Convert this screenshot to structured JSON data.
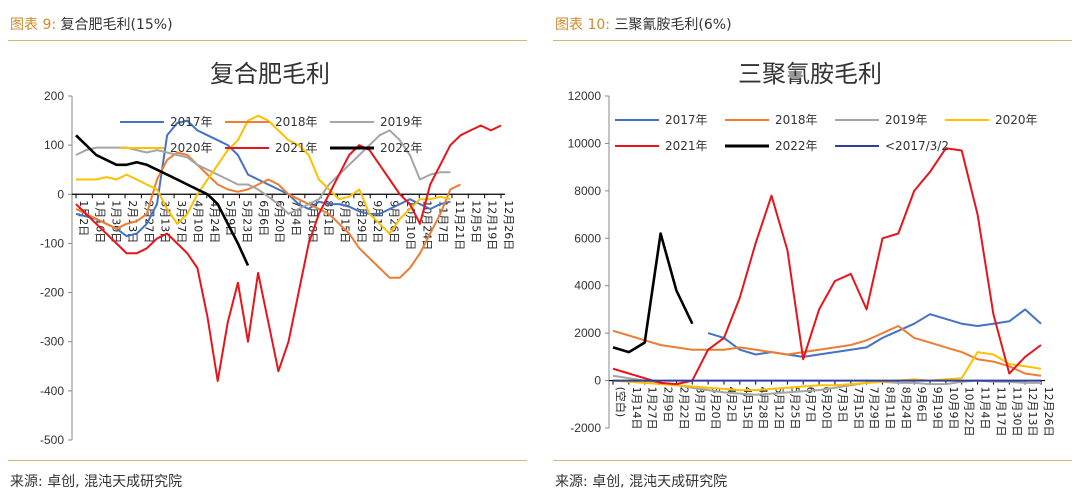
{
  "figures": [
    {
      "caption_prefix": "图表 9:",
      "caption_text": "复合肥毛利(15%)",
      "source": "来源: 卓创, 混沌天成研究院"
    },
    {
      "caption_prefix": "图表 10:",
      "caption_text": "三聚氰胺毛利(6%)",
      "source": "来源: 卓创, 混沌天成研究院"
    }
  ],
  "chart_data": [
    {
      "type": "line",
      "title": "复合肥毛利",
      "ylim": [
        -500,
        200
      ],
      "y_ticks": [
        "200",
        "100",
        "0",
        "-100",
        "-200",
        "-300",
        "-400",
        "-500"
      ],
      "x_ticks": [
        "1月2日",
        "1月16日",
        "1月30日",
        "2月13日",
        "2月27日",
        "3月13日",
        "3月27日",
        "4月10日",
        "4月24日",
        "5月9日",
        "5月23日",
        "6月6日",
        "6月20日",
        "7月4日",
        "7月18日",
        "8月1日",
        "8月15日",
        "8月29日",
        "9月12日",
        "9月26日",
        "10月10日",
        "10月24日",
        "11月7日",
        "11月21日",
        "12月5日",
        "12月19日",
        "12月26日"
      ],
      "legend": [
        "2017年",
        "2018年",
        "2019年",
        "2020年",
        "2021年",
        "2022年"
      ],
      "grid": false,
      "series": [
        {
          "name": "2017年",
          "color": "#4472c4",
          "values": [
            -40,
            -45,
            -50,
            -60,
            -70,
            -85,
            -80,
            -60,
            -20,
            120,
            145,
            150,
            130,
            120,
            110,
            100,
            80,
            40,
            30,
            20,
            10,
            0,
            -20,
            -30,
            -15,
            -20,
            -20,
            -25,
            -35,
            -40,
            -40,
            -30,
            -20,
            -10,
            -20,
            -30,
            -20,
            -15
          ]
        },
        {
          "name": "2018年",
          "color": "#ed7d31",
          "values": [
            -30,
            -40,
            -50,
            -60,
            -70,
            -60,
            -55,
            -40,
            30,
            70,
            85,
            80,
            60,
            40,
            20,
            10,
            5,
            10,
            20,
            30,
            20,
            0,
            -10,
            -20,
            -30,
            -40,
            -60,
            -80,
            -110,
            -130,
            -150,
            -170,
            -170,
            -150,
            -120,
            -80,
            -40,
            10,
            20
          ]
        },
        {
          "name": "2019年",
          "color": "#a5a5a5",
          "values": [
            80,
            90,
            95,
            95,
            95,
            95,
            90,
            85,
            90,
            85,
            80,
            75,
            60,
            50,
            40,
            30,
            20,
            20,
            10,
            -5,
            -20,
            -40,
            -30,
            -20,
            -10,
            20,
            40,
            60,
            80,
            100,
            120,
            130,
            110,
            80,
            30,
            40,
            45,
            45
          ]
        },
        {
          "name": "2020年",
          "color": "#ffc000",
          "values": [
            30,
            30,
            30,
            35,
            30,
            40,
            30,
            20,
            10,
            -30,
            -60,
            -40,
            0,
            30,
            60,
            90,
            110,
            150,
            160,
            150,
            130,
            110,
            100,
            80,
            30,
            10,
            -10,
            -5,
            10,
            -40,
            -60,
            -80,
            -50,
            -30,
            -10,
            -10,
            -5,
            -10
          ]
        },
        {
          "name": "2021年",
          "color": "#e8141c",
          "values": [
            -20,
            -40,
            -60,
            -80,
            -100,
            -120,
            -120,
            -110,
            -90,
            -80,
            -100,
            -120,
            -150,
            -250,
            -380,
            -260,
            -180,
            -300,
            -160,
            -260,
            -360,
            -300,
            -200,
            -100,
            -40,
            0,
            40,
            80,
            100,
            90,
            60,
            30,
            0,
            -20,
            -60,
            20,
            60,
            100,
            120,
            130,
            140,
            130,
            140
          ]
        },
        {
          "name": "2022年",
          "color": "#000000",
          "values": [
            120,
            100,
            80,
            70,
            60,
            60,
            65,
            60,
            50,
            40,
            30,
            20,
            10,
            0,
            -20,
            -60,
            -100,
            -145
          ]
        }
      ]
    },
    {
      "type": "line",
      "title": "三聚氰胺毛利",
      "ylim": [
        -2000,
        12000
      ],
      "y_ticks": [
        "12000",
        "10000",
        "8000",
        "6000",
        "4000",
        "2000",
        "0",
        "-2000"
      ],
      "x_ticks": [
        "(空白)",
        "1月14日",
        "1月27日",
        "2月9日",
        "2月22日",
        "3月7日",
        "3月20日",
        "4月2日",
        "4月15日",
        "4月28日",
        "5月12日",
        "5月25日",
        "6月7日",
        "6月20日",
        "7月3日",
        "7月15日",
        "7月29日",
        "8月11日",
        "8月24日",
        "9月6日",
        "9月19日",
        "10月9日",
        "10月22日",
        "11月4日",
        "11月17日",
        "11月30日",
        "12月13日",
        "12月26日"
      ],
      "legend": [
        "2017年",
        "2018年",
        "2019年",
        "2020年",
        "2021年",
        "2022年",
        "<2017/3/2"
      ],
      "grid": false,
      "series": [
        {
          "name": "2017年",
          "color": "#4472c4",
          "values": [
            null,
            null,
            null,
            null,
            null,
            null,
            2000,
            1800,
            1300,
            1100,
            1200,
            1100,
            1000,
            1100,
            1200,
            1300,
            1400,
            1800,
            2100,
            2400,
            2800,
            2600,
            2400,
            2300,
            2400,
            2500,
            3000,
            2400
          ]
        },
        {
          "name": "2018年",
          "color": "#ed7d31",
          "values": [
            2100,
            1900,
            1700,
            1500,
            1400,
            1300,
            1300,
            1300,
            1400,
            1300,
            1200,
            1100,
            1200,
            1300,
            1400,
            1500,
            1700,
            2000,
            2300,
            1800,
            1600,
            1400,
            1200,
            900,
            800,
            600,
            300,
            200
          ]
        },
        {
          "name": "2019年",
          "color": "#a5a5a5",
          "values": [
            200,
            100,
            0,
            -100,
            -200,
            -300,
            -400,
            -500,
            -550,
            -600,
            -550,
            -500,
            -450,
            -400,
            -300,
            -200,
            -100,
            -50,
            -100,
            -100,
            -150,
            -150,
            -50,
            0,
            -50,
            -50,
            -100,
            -100
          ]
        },
        {
          "name": "2020年",
          "color": "#ffc000",
          "values": [
            0,
            -50,
            -100,
            -150,
            -200,
            -250,
            -300,
            -350,
            -400,
            -400,
            -350,
            -300,
            -250,
            -200,
            -200,
            -150,
            -100,
            -50,
            0,
            50,
            0,
            50,
            100,
            1200,
            1100,
            700,
            600,
            500
          ]
        },
        {
          "name": "2021年",
          "color": "#e8141c",
          "values": [
            500,
            300,
            100,
            -100,
            -150,
            0,
            1300,
            1800,
            3500,
            5800,
            7800,
            5500,
            900,
            3000,
            4200,
            4500,
            3000,
            6000,
            6200,
            8000,
            8800,
            9800,
            9700,
            7000,
            2800,
            300,
            1000,
            1500
          ]
        },
        {
          "name": "2022年",
          "color": "#000000",
          "values": [
            1400,
            1200,
            1600,
            6200,
            3800,
            2400
          ]
        },
        {
          "name": "<2017/3/2",
          "color": "#2f3f9e",
          "values": [
            0,
            0,
            0,
            0,
            0,
            0,
            0,
            0,
            0,
            0,
            0,
            0,
            0,
            0,
            0,
            0,
            0,
            0,
            0,
            0,
            0,
            0,
            0,
            0,
            0,
            0,
            0,
            0
          ]
        }
      ]
    }
  ]
}
